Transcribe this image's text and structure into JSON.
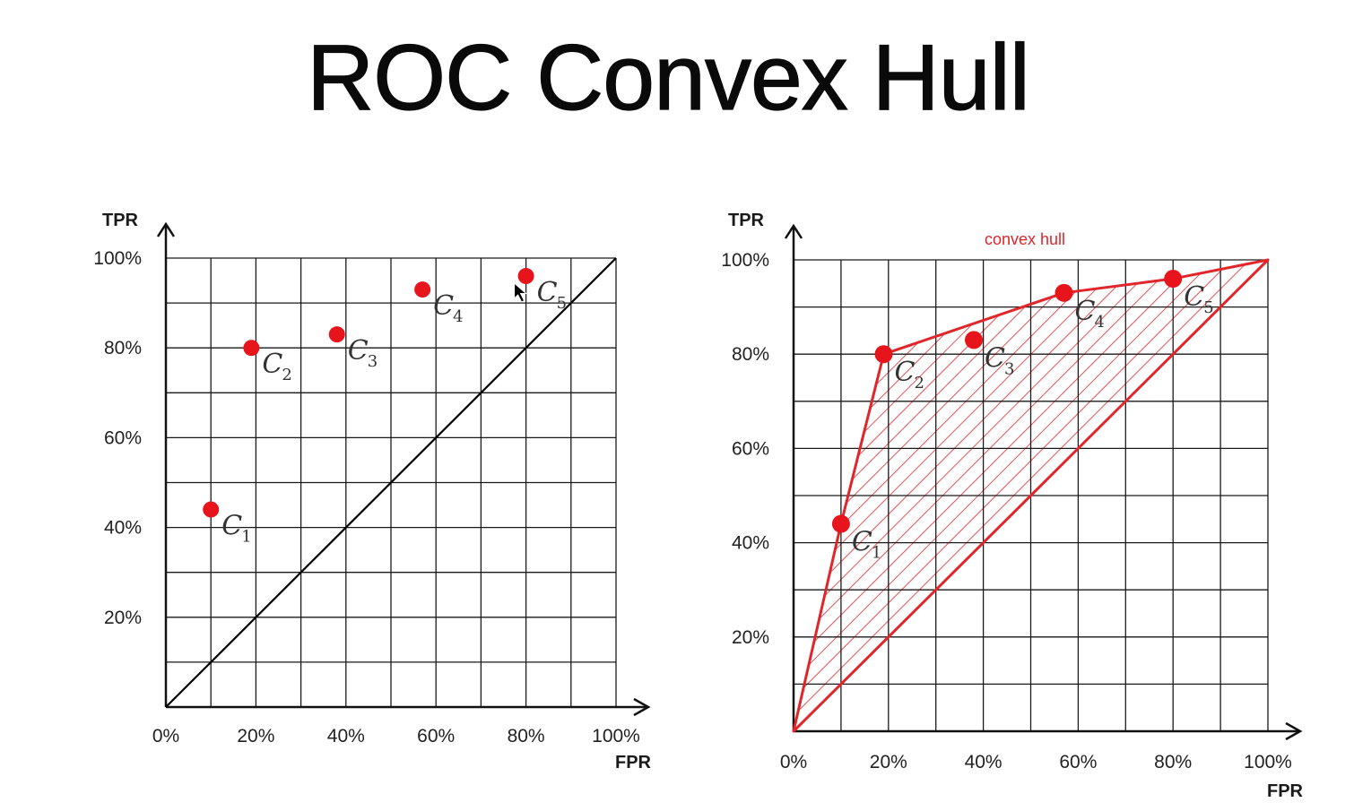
{
  "title": "ROC Convex Hull",
  "colors": {
    "point": "#e8141b",
    "hull": "#e0262b",
    "grid": "#1a1a1a",
    "diagonal": "#000000",
    "label_text": "#333333"
  },
  "chart_data": [
    {
      "type": "scatter",
      "title": "",
      "xlabel": "FPR",
      "ylabel": "TPR",
      "xlim": [
        0,
        100
      ],
      "ylim": [
        0,
        100
      ],
      "grid": true,
      "x_ticks": [
        "0%",
        "20%",
        "40%",
        "60%",
        "80%",
        "100%"
      ],
      "y_ticks": [
        "20%",
        "40%",
        "60%",
        "80%",
        "100%"
      ],
      "diagonal": true,
      "points": [
        {
          "label": "C",
          "sub": "1",
          "x": 10,
          "y": 44
        },
        {
          "label": "C",
          "sub": "2",
          "x": 19,
          "y": 80
        },
        {
          "label": "C",
          "sub": "3",
          "x": 38,
          "y": 83
        },
        {
          "label": "C",
          "sub": "4",
          "x": 57,
          "y": 93
        },
        {
          "label": "C",
          "sub": "5",
          "x": 80,
          "y": 96
        }
      ]
    },
    {
      "type": "scatter",
      "title": "",
      "xlabel": "FPR",
      "ylabel": "TPR",
      "xlim": [
        0,
        100
      ],
      "ylim": [
        0,
        100
      ],
      "grid": true,
      "x_ticks": [
        "0%",
        "20%",
        "40%",
        "60%",
        "80%",
        "100%"
      ],
      "y_ticks": [
        "20%",
        "40%",
        "60%",
        "80%",
        "100%"
      ],
      "hull_label": "convex hull",
      "hull": [
        [
          0,
          0
        ],
        [
          10,
          44
        ],
        [
          19,
          80
        ],
        [
          57,
          93
        ],
        [
          80,
          96
        ],
        [
          100,
          100
        ]
      ],
      "points": [
        {
          "label": "C",
          "sub": "1",
          "x": 10,
          "y": 44
        },
        {
          "label": "C",
          "sub": "2",
          "x": 19,
          "y": 80
        },
        {
          "label": "C",
          "sub": "3",
          "x": 38,
          "y": 83
        },
        {
          "label": "C",
          "sub": "4",
          "x": 57,
          "y": 93
        },
        {
          "label": "C",
          "sub": "5",
          "x": 80,
          "y": 96
        }
      ]
    }
  ]
}
